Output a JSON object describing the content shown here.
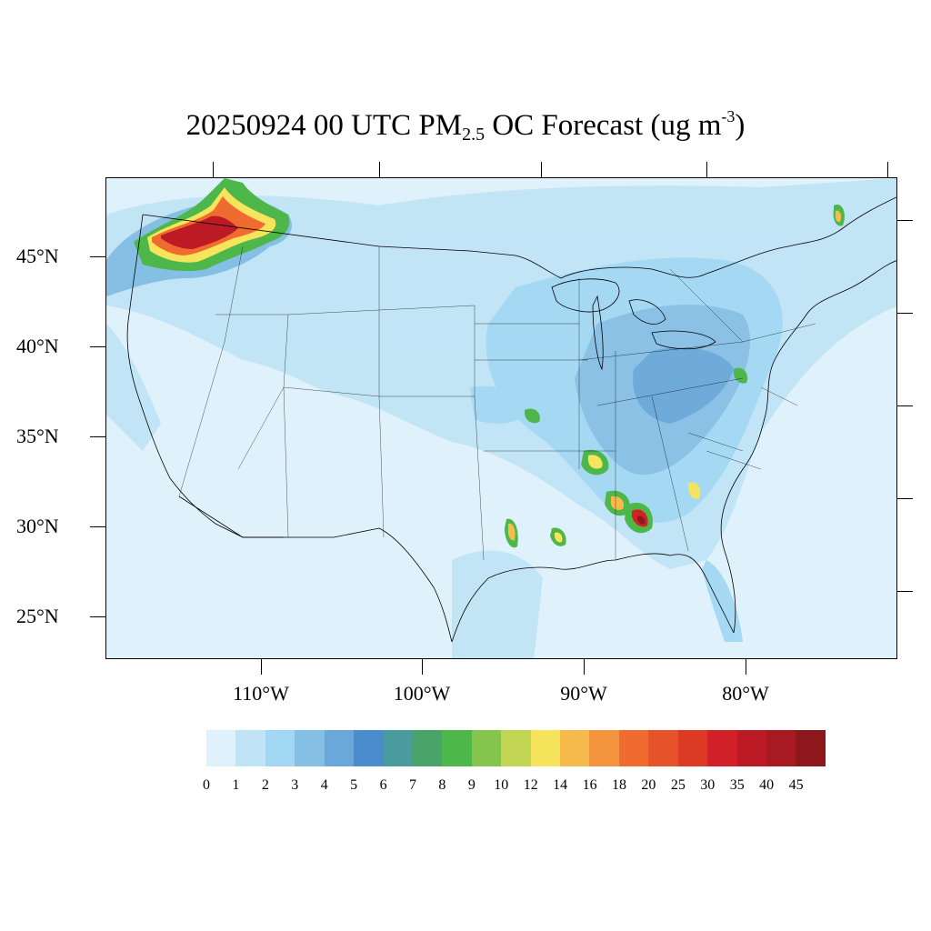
{
  "title": {
    "date": "20250924",
    "time": "00 UTC",
    "species": "PM",
    "subscript": "2.5",
    "label": "OC Forecast (ug m",
    "superscript": "-3",
    "close": ")"
  },
  "axes": {
    "lat_labels": [
      "45°N",
      "40°N",
      "35°N",
      "30°N",
      "25°N"
    ],
    "lon_labels": [
      "110°W",
      "100°W",
      "90°W",
      "80°W"
    ]
  },
  "colorbar": {
    "levels": [
      "0",
      "1",
      "2",
      "3",
      "4",
      "5",
      "6",
      "7",
      "8",
      "9",
      "10",
      "12",
      "14",
      "16",
      "18",
      "20",
      "25",
      "30",
      "35",
      "40",
      "45"
    ],
    "colors": [
      "#dff1fa",
      "#c0e4f6",
      "#a2d7f3",
      "#86bfe4",
      "#69a8d9",
      "#4b8ccc",
      "#4a9b9d",
      "#49a46a",
      "#4db74a",
      "#86c54d",
      "#c3d653",
      "#f6e45c",
      "#f7bb4d",
      "#f4943e",
      "#ef6b2f",
      "#e6522a",
      "#dd3a26",
      "#d12027",
      "#bc1b25",
      "#a81a22",
      "#8e171c"
    ]
  },
  "map": {
    "background_color": "#dff1fa",
    "boundary_color": "#000000"
  }
}
